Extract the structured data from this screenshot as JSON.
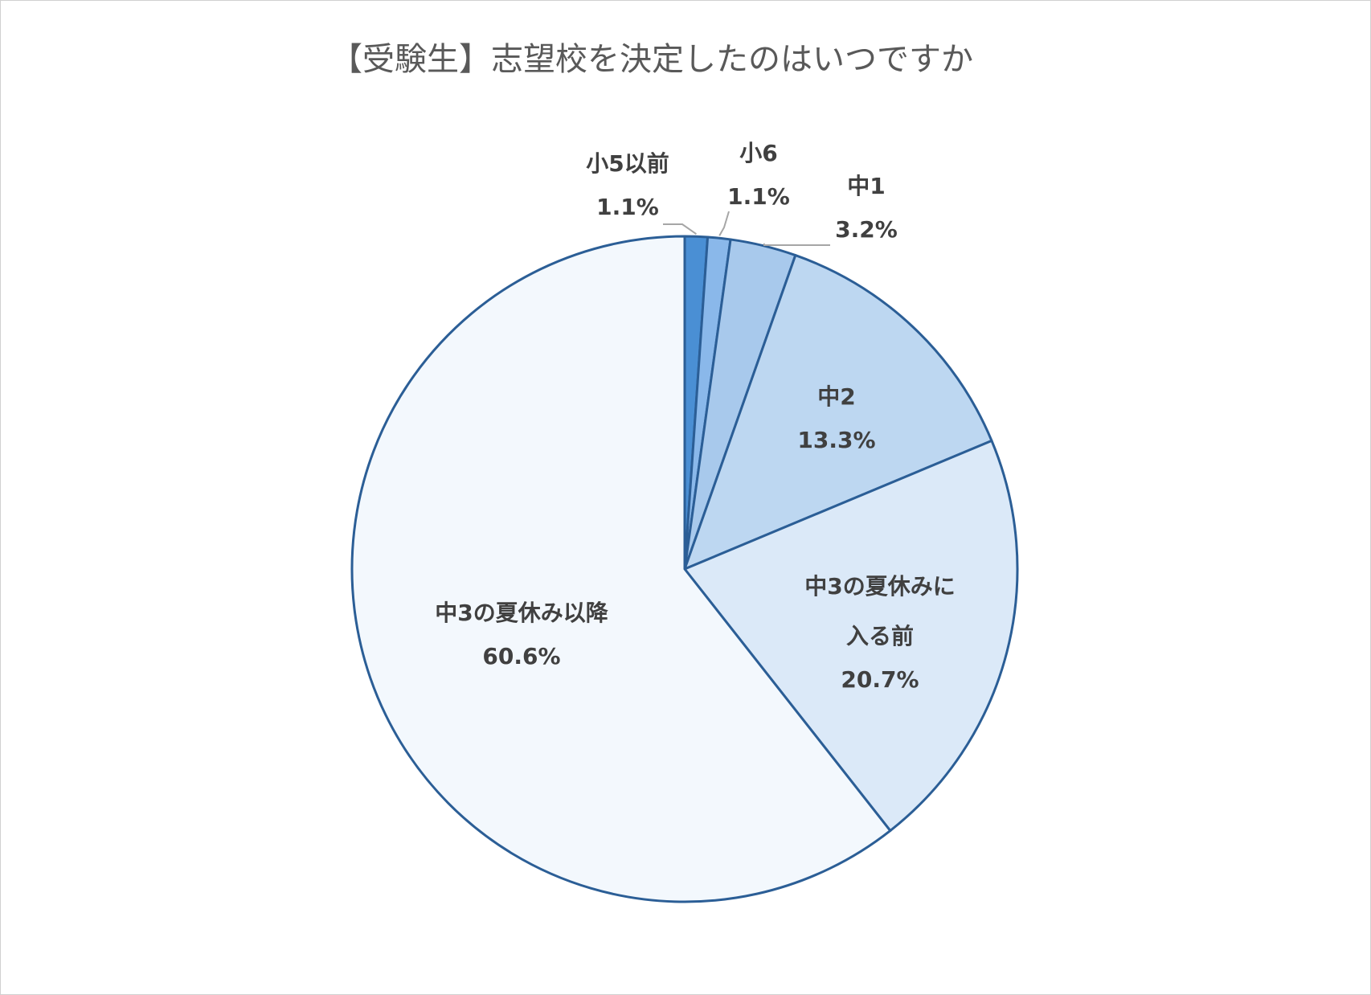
{
  "chart_data": {
    "type": "pie",
    "title": "【受験生】志望校を決定したのはいつですか",
    "categories": [
      "小5以前",
      "小6",
      "中1",
      "中2",
      "中3の夏休みに入る前",
      "中3の夏休み以降"
    ],
    "values": [
      1.1,
      1.1,
      3.2,
      13.3,
      20.7,
      60.6
    ],
    "labels": [
      {
        "name": "小5以前",
        "value": "1.1%"
      },
      {
        "name": "小6",
        "value": "1.1%"
      },
      {
        "name": "中1",
        "value": "3.2%"
      },
      {
        "name": "中2",
        "value": "13.3%"
      },
      {
        "name_lines": [
          "中3の夏休みに",
          "入る前"
        ],
        "value": "20.7%"
      },
      {
        "name": "中3の夏休み以降",
        "value": "60.6%"
      }
    ],
    "colors": [
      "#4a8fd4",
      "#8ab8ea",
      "#a8c9ec",
      "#bdd7f1",
      "#dbe9f8",
      "#f3f8fd"
    ],
    "border_color": "#2b5e96",
    "start_angle_deg": 0,
    "direction": "clockwise"
  }
}
